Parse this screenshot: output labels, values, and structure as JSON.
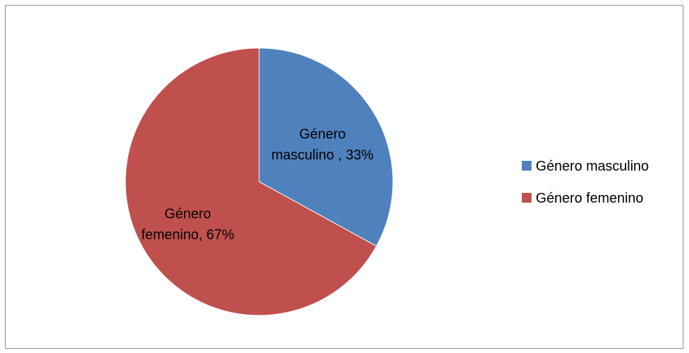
{
  "chart_data": {
    "type": "pie",
    "title": "",
    "categories": [
      "Género masculino",
      "Género femenino"
    ],
    "values": [
      33,
      67
    ],
    "unit": "%",
    "colors": [
      "#4f81bd",
      "#c0504d"
    ],
    "slice_labels": [
      [
        "Género",
        "masculino , 33%"
      ],
      [
        "Género",
        "femenino, 67%"
      ]
    ],
    "legend": {
      "position": "right",
      "items": [
        "Género masculino",
        "Género femenino"
      ]
    }
  }
}
